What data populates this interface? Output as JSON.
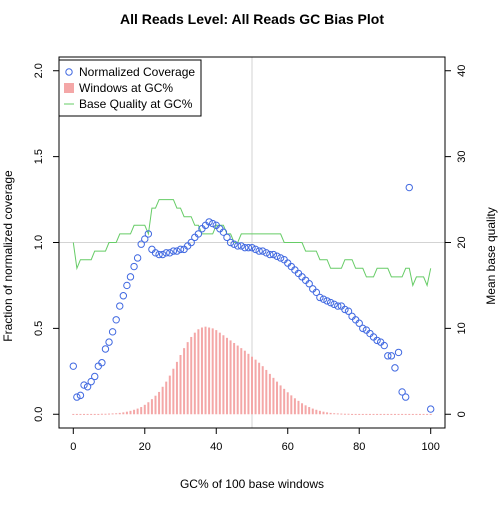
{
  "chart_data": {
    "type": "line",
    "title": "All Reads Level: All Reads  GC Bias Plot",
    "xlabel": "GC% of 100 base windows",
    "ylabel_left": "Fraction of normalized coverage",
    "ylabel_right": "Mean base quality",
    "xlim": [
      0,
      100
    ],
    "ylim_left": [
      0,
      2
    ],
    "ylim_right": [
      0,
      40
    ],
    "x_ticks": [
      0,
      20,
      40,
      60,
      80,
      100
    ],
    "y_ticks_left": [
      "0.0",
      "0.5",
      "1.0",
      "1.5",
      "2.0"
    ],
    "y_ticks_right": [
      "0",
      "10",
      "20",
      "30",
      "40"
    ],
    "legend_position": "top-left",
    "reference_lines": {
      "horizontal_y": 1.0,
      "vertical_x": 50
    },
    "colors": {
      "coverage": "#4169e1",
      "windows": "#f4a7a7",
      "quality": "#66cc66",
      "reference": "#d3d3d3"
    },
    "series": [
      {
        "name": "Normalized Coverage",
        "kind": "points",
        "axis": "left",
        "points": [
          [
            0,
            0.28
          ],
          [
            1,
            0.1
          ],
          [
            2,
            0.11
          ],
          [
            3,
            0.17
          ],
          [
            4,
            0.16
          ],
          [
            5,
            0.19
          ],
          [
            6,
            0.22
          ],
          [
            7,
            0.28
          ],
          [
            8,
            0.3
          ],
          [
            9,
            0.38
          ],
          [
            10,
            0.42
          ],
          [
            11,
            0.48
          ],
          [
            12,
            0.55
          ],
          [
            13,
            0.63
          ],
          [
            14,
            0.69
          ],
          [
            15,
            0.75
          ],
          [
            16,
            0.8
          ],
          [
            17,
            0.86
          ],
          [
            18,
            0.91
          ],
          [
            19,
            0.99
          ],
          [
            20,
            1.02
          ],
          [
            21,
            1.05
          ],
          [
            22,
            0.96
          ],
          [
            23,
            0.94
          ],
          [
            24,
            0.93
          ],
          [
            25,
            0.93
          ],
          [
            26,
            0.94
          ],
          [
            27,
            0.94
          ],
          [
            28,
            0.95
          ],
          [
            29,
            0.95
          ],
          [
            30,
            0.96
          ],
          [
            31,
            0.96
          ],
          [
            32,
            0.98
          ],
          [
            33,
            1.0
          ],
          [
            34,
            1.03
          ],
          [
            35,
            1.05
          ],
          [
            36,
            1.08
          ],
          [
            37,
            1.1
          ],
          [
            38,
            1.12
          ],
          [
            39,
            1.11
          ],
          [
            40,
            1.1
          ],
          [
            41,
            1.08
          ],
          [
            42,
            1.06
          ],
          [
            43,
            1.03
          ],
          [
            44,
            1.0
          ],
          [
            45,
            0.99
          ],
          [
            46,
            0.98
          ],
          [
            47,
            0.98
          ],
          [
            48,
            0.97
          ],
          [
            49,
            0.97
          ],
          [
            50,
            0.97
          ],
          [
            51,
            0.96
          ],
          [
            52,
            0.95
          ],
          [
            53,
            0.95
          ],
          [
            54,
            0.94
          ],
          [
            55,
            0.93
          ],
          [
            56,
            0.93
          ],
          [
            57,
            0.92
          ],
          [
            58,
            0.91
          ],
          [
            59,
            0.9
          ],
          [
            60,
            0.88
          ],
          [
            61,
            0.86
          ],
          [
            62,
            0.84
          ],
          [
            63,
            0.82
          ],
          [
            64,
            0.8
          ],
          [
            65,
            0.78
          ],
          [
            66,
            0.76
          ],
          [
            67,
            0.73
          ],
          [
            68,
            0.71
          ],
          [
            69,
            0.68
          ],
          [
            70,
            0.67
          ],
          [
            71,
            0.66
          ],
          [
            72,
            0.65
          ],
          [
            73,
            0.64
          ],
          [
            74,
            0.63
          ],
          [
            75,
            0.63
          ],
          [
            76,
            0.61
          ],
          [
            77,
            0.6
          ],
          [
            78,
            0.57
          ],
          [
            79,
            0.55
          ],
          [
            80,
            0.53
          ],
          [
            81,
            0.5
          ],
          [
            82,
            0.49
          ],
          [
            83,
            0.47
          ],
          [
            84,
            0.45
          ],
          [
            85,
            0.43
          ],
          [
            86,
            0.42
          ],
          [
            87,
            0.4
          ],
          [
            88,
            0.34
          ],
          [
            89,
            0.34
          ],
          [
            90,
            0.27
          ],
          [
            91,
            0.36
          ],
          [
            92,
            0.13
          ],
          [
            93,
            0.1
          ],
          [
            94,
            1.32
          ],
          [
            100,
            0.03
          ]
        ]
      },
      {
        "name": "Windows at GC%",
        "kind": "bars",
        "axis": "left",
        "values": [
          0.002,
          0.002,
          0.002,
          0.002,
          0.002,
          0.002,
          0.002,
          0.002,
          0.003,
          0.003,
          0.004,
          0.005,
          0.006,
          0.008,
          0.011,
          0.015,
          0.02,
          0.026,
          0.033,
          0.042,
          0.055,
          0.07,
          0.088,
          0.108,
          0.13,
          0.16,
          0.19,
          0.225,
          0.265,
          0.305,
          0.345,
          0.385,
          0.42,
          0.45,
          0.475,
          0.495,
          0.505,
          0.51,
          0.505,
          0.5,
          0.49,
          0.475,
          0.46,
          0.445,
          0.43,
          0.415,
          0.4,
          0.385,
          0.37,
          0.352,
          0.335,
          0.318,
          0.3,
          0.28,
          0.258,
          0.235,
          0.212,
          0.19,
          0.168,
          0.148,
          0.128,
          0.11,
          0.093,
          0.078,
          0.064,
          0.052,
          0.042,
          0.033,
          0.026,
          0.02,
          0.015,
          0.011,
          0.008,
          0.006,
          0.005,
          0.004,
          0.003,
          0.003,
          0.002,
          0.002,
          0.002,
          0.002,
          0.002,
          0.002,
          0.002,
          0.002,
          0.002,
          0.002,
          0.002,
          0.002,
          0.002,
          0.002,
          0.002,
          0.002,
          0.002,
          0.002,
          0.002,
          0.002,
          0.002,
          0.002,
          0.002
        ]
      },
      {
        "name": "Base Quality at GC%",
        "kind": "line",
        "axis": "right",
        "points": [
          [
            0,
            20
          ],
          [
            1,
            17
          ],
          [
            2,
            18
          ],
          [
            5,
            18
          ],
          [
            6,
            19
          ],
          [
            9,
            19
          ],
          [
            10,
            20
          ],
          [
            12,
            20
          ],
          [
            13,
            21
          ],
          [
            16,
            21
          ],
          [
            17,
            22
          ],
          [
            20,
            22
          ],
          [
            21,
            21
          ],
          [
            22,
            24
          ],
          [
            23,
            24
          ],
          [
            24,
            25
          ],
          [
            28,
            25
          ],
          [
            29,
            24
          ],
          [
            30,
            24
          ],
          [
            31,
            23
          ],
          [
            33,
            23
          ],
          [
            34,
            22
          ],
          [
            35,
            22
          ],
          [
            36,
            21
          ],
          [
            37,
            21
          ],
          [
            39,
            21
          ],
          [
            40,
            22
          ],
          [
            42,
            22
          ],
          [
            43,
            21
          ],
          [
            44,
            21
          ],
          [
            45,
            20
          ],
          [
            46,
            20
          ],
          [
            47,
            21
          ],
          [
            58,
            21
          ],
          [
            59,
            20
          ],
          [
            64,
            20
          ],
          [
            65,
            19
          ],
          [
            68,
            19
          ],
          [
            69,
            18
          ],
          [
            71,
            18
          ],
          [
            72,
            17
          ],
          [
            75,
            17
          ],
          [
            76,
            18
          ],
          [
            78,
            18
          ],
          [
            79,
            17
          ],
          [
            81,
            17
          ],
          [
            82,
            16
          ],
          [
            84,
            16
          ],
          [
            85,
            17
          ],
          [
            88,
            17
          ],
          [
            89,
            16
          ],
          [
            92,
            16
          ],
          [
            93,
            17
          ],
          [
            94,
            17
          ],
          [
            95,
            15
          ],
          [
            96,
            16
          ],
          [
            98,
            16
          ],
          [
            99,
            15
          ],
          [
            100,
            17
          ]
        ]
      }
    ]
  }
}
